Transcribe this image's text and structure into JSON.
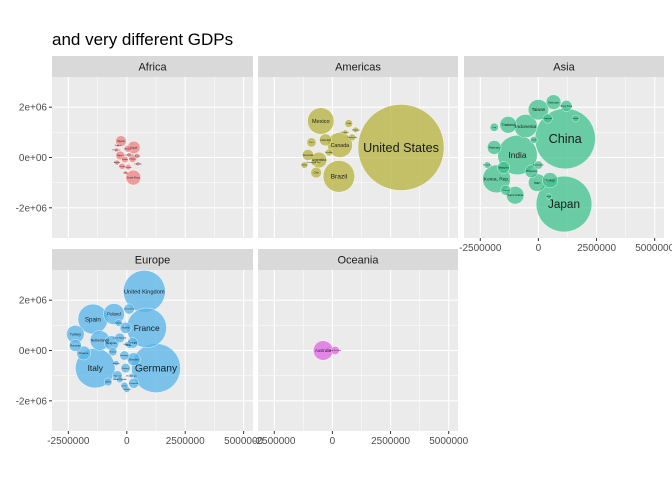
{
  "chart_data": {
    "type": "scatter",
    "subtype": "faceted packed bubble chart",
    "title": "and very different GDPs",
    "facet_labels": [
      "Africa",
      "Americas",
      "Asia",
      "Europe",
      "Oceania"
    ],
    "x_ticks": [
      -2500000,
      0,
      2500000,
      5000000
    ],
    "x_tick_labels": [
      "-2500000",
      "0",
      "2500000",
      "5000000"
    ],
    "y_ticks": [
      -2000000,
      0,
      2000000
    ],
    "y_tick_labels": [
      "-2e+06",
      "0e+00",
      "2e+06"
    ],
    "xlim": [
      -3200000,
      5400000
    ],
    "ylim": [
      -3200000,
      3200000
    ],
    "colors": {
      "Africa": "#F08080",
      "Americas": "#B5B13C",
      "Asia": "#3EC28E",
      "Europe": "#56B4E9",
      "Oceania": "#E066E6",
      "panel_bg": "#EBEBEB",
      "strip_bg": "#D9D9D9",
      "grid": "#FFFFFF"
    },
    "series": [
      {
        "name": "Africa",
        "points": [
          {
            "label": "Egypt",
            "x": 300000,
            "y": 400000,
            "r": 270000
          },
          {
            "label": "Nigeria",
            "x": -250000,
            "y": 650000,
            "r": 230000
          },
          {
            "label": "South Africa",
            "x": 280000,
            "y": -800000,
            "r": 320000
          },
          {
            "label": "Algeria",
            "x": -280000,
            "y": 80000,
            "r": 190000
          },
          {
            "label": "Morocco",
            "x": 50000,
            "y": 350000,
            "r": 150000
          },
          {
            "label": "Sudan",
            "x": -80000,
            "y": -80000,
            "r": 140000
          },
          {
            "label": "Ethiopia",
            "x": 250000,
            "y": -60000,
            "r": 150000
          },
          {
            "label": "Kenya",
            "x": -200000,
            "y": -350000,
            "r": 130000
          },
          {
            "label": "Tunisia",
            "x": 60000,
            "y": -380000,
            "r": 120000
          },
          {
            "label": "Ghana",
            "x": 440000,
            "y": 60000,
            "r": 110000
          },
          {
            "label": "Angola",
            "x": -420000,
            "y": -200000,
            "r": 110000
          },
          {
            "label": "Cameroon",
            "x": 100000,
            "y": 100000,
            "r": 100000
          },
          {
            "label": "Tanzania",
            "x": -450000,
            "y": 300000,
            "r": 90000
          },
          {
            "label": "Uganda",
            "x": 480000,
            "y": -250000,
            "r": 90000
          },
          {
            "label": "Libya",
            "x": -50000,
            "y": -600000,
            "r": 80000
          },
          {
            "label": "Zambia",
            "x": -380000,
            "y": 480000,
            "r": 70000
          }
        ]
      },
      {
        "name": "Americas",
        "points": [
          {
            "label": "United States",
            "x": 2950000,
            "y": 400000,
            "r": 1850000
          },
          {
            "label": "Mexico",
            "x": -500000,
            "y": 1450000,
            "r": 570000
          },
          {
            "label": "Brazil",
            "x": 280000,
            "y": -750000,
            "r": 680000
          },
          {
            "label": "Canada",
            "x": 320000,
            "y": 500000,
            "r": 540000
          },
          {
            "label": "Argentina",
            "x": -580000,
            "y": -100000,
            "r": 340000
          },
          {
            "label": "Colombia",
            "x": -300000,
            "y": 700000,
            "r": 260000
          },
          {
            "label": "Venezuela",
            "x": -1050000,
            "y": 100000,
            "r": 240000
          },
          {
            "label": "Chile",
            "x": -700000,
            "y": -600000,
            "r": 230000
          },
          {
            "label": "Peru",
            "x": -900000,
            "y": 600000,
            "r": 200000
          },
          {
            "label": "Cuba",
            "x": 700000,
            "y": 1350000,
            "r": 170000
          },
          {
            "label": "Ecuador",
            "x": -150000,
            "y": 200000,
            "r": 150000
          },
          {
            "label": "Guatemala",
            "x": 850000,
            "y": 800000,
            "r": 150000
          },
          {
            "label": "Bolivia",
            "x": -1200000,
            "y": -300000,
            "r": 140000
          },
          {
            "label": "Uruguay",
            "x": 1000000,
            "y": 1100000,
            "r": 120000
          },
          {
            "label": "Dominican Rep.",
            "x": -800000,
            "y": -200000,
            "r": 120000
          },
          {
            "label": "Panama",
            "x": 550000,
            "y": 1000000,
            "r": 110000
          }
        ]
      },
      {
        "name": "Asia",
        "points": [
          {
            "label": "China",
            "x": 1150000,
            "y": 750000,
            "r": 1300000
          },
          {
            "label": "Japan",
            "x": 1100000,
            "y": -1850000,
            "r": 1200000
          },
          {
            "label": "India",
            "x": -900000,
            "y": 100000,
            "r": 850000
          },
          {
            "label": "Korea, Rep.",
            "x": -1800000,
            "y": -850000,
            "r": 600000
          },
          {
            "label": "Indonesia",
            "x": -550000,
            "y": 1250000,
            "r": 500000
          },
          {
            "label": "Taiwan",
            "x": 0,
            "y": 1900000,
            "r": 440000
          },
          {
            "label": "Iran",
            "x": -50000,
            "y": -1000000,
            "r": 380000
          },
          {
            "label": "Saudi Arabia",
            "x": -1000000,
            "y": -1500000,
            "r": 380000
          },
          {
            "label": "Thailand",
            "x": -1300000,
            "y": 1300000,
            "r": 360000
          },
          {
            "label": "Turkey",
            "x": 500000,
            "y": -900000,
            "r": 330000
          },
          {
            "label": "Pakistan",
            "x": -1900000,
            "y": 400000,
            "r": 300000
          },
          {
            "label": "Philippines",
            "x": -300000,
            "y": -550000,
            "r": 280000
          },
          {
            "label": "Malaysia",
            "x": -1500000,
            "y": -400000,
            "r": 260000
          },
          {
            "label": "Vietnam",
            "x": 650000,
            "y": 2200000,
            "r": 320000
          },
          {
            "label": "Israel",
            "x": -1400000,
            "y": -1300000,
            "r": 220000
          },
          {
            "label": "Hong Kong",
            "x": 1200000,
            "y": 2050000,
            "r": 240000
          },
          {
            "label": "Singapore",
            "x": 400000,
            "y": 1550000,
            "r": 200000
          },
          {
            "label": "Iraq",
            "x": -1900000,
            "y": 1200000,
            "r": 180000
          },
          {
            "label": "Bangladesh",
            "x": 0,
            "y": -300000,
            "r": 180000
          },
          {
            "label": "Syria",
            "x": -200000,
            "y": 700000,
            "r": 150000
          },
          {
            "label": "Kuwait",
            "x": 1600000,
            "y": 1550000,
            "r": 150000
          },
          {
            "label": "Sri Lanka",
            "x": -2200000,
            "y": -300000,
            "r": 140000
          },
          {
            "label": "Nepal",
            "x": 450000,
            "y": -1550000,
            "r": 120000
          }
        ]
      },
      {
        "name": "Europe",
        "points": [
          {
            "label": "Germany",
            "x": 1250000,
            "y": -700000,
            "r": 1050000
          },
          {
            "label": "United Kingdom",
            "x": 750000,
            "y": 2350000,
            "r": 900000
          },
          {
            "label": "France",
            "x": 850000,
            "y": 900000,
            "r": 850000
          },
          {
            "label": "Italy",
            "x": -1350000,
            "y": -700000,
            "r": 850000
          },
          {
            "label": "Spain",
            "x": -1450000,
            "y": 1250000,
            "r": 640000
          },
          {
            "label": "Netherlands",
            "x": -1150000,
            "y": 400000,
            "r": 420000
          },
          {
            "label": "Poland",
            "x": -550000,
            "y": 1450000,
            "r": 450000
          },
          {
            "label": "Turkey",
            "x": -2200000,
            "y": 650000,
            "r": 380000
          },
          {
            "label": "Belgium",
            "x": -650000,
            "y": 300000,
            "r": 310000
          },
          {
            "label": "Sweden",
            "x": 300000,
            "y": -350000,
            "r": 280000
          },
          {
            "label": "Austria",
            "x": -50000,
            "y": 900000,
            "r": 240000
          },
          {
            "label": "Switzerland",
            "x": 100000,
            "y": 1650000,
            "r": 220000
          },
          {
            "label": "Romania",
            "x": -2200000,
            "y": 200000,
            "r": 260000
          },
          {
            "label": "Greece",
            "x": -1850000,
            "y": -100000,
            "r": 300000
          },
          {
            "label": "Portugal",
            "x": 250000,
            "y": 300000,
            "r": 230000
          },
          {
            "label": "Czech Republic",
            "x": -300000,
            "y": 500000,
            "r": 210000
          },
          {
            "label": "Hungary",
            "x": -100000,
            "y": -200000,
            "r": 200000
          },
          {
            "label": "Denmark",
            "x": 300000,
            "y": -1300000,
            "r": 220000
          },
          {
            "label": "Finland",
            "x": -50000,
            "y": -700000,
            "r": 200000
          },
          {
            "label": "Norway",
            "x": -400000,
            "y": -1000000,
            "r": 210000
          },
          {
            "label": "Ireland",
            "x": -600000,
            "y": -50000,
            "r": 180000
          },
          {
            "label": "Serbia",
            "x": -800000,
            "y": -1250000,
            "r": 170000
          },
          {
            "label": "Croatia",
            "x": -100000,
            "y": -1400000,
            "r": 150000
          },
          {
            "label": "Slovak Republic",
            "x": -300000,
            "y": -1150000,
            "r": 140000
          },
          {
            "label": "Bulgaria",
            "x": -350000,
            "y": 1100000,
            "r": 150000
          },
          {
            "label": "Slovenia",
            "x": 0,
            "y": -1550000,
            "r": 130000
          },
          {
            "label": "Bosnia",
            "x": 100000,
            "y": 200000,
            "r": 120000
          },
          {
            "label": "Albania",
            "x": -450000,
            "y": -500000,
            "r": 110000
          },
          {
            "label": "Iceland",
            "x": 0,
            "y": 250000,
            "r": 100000
          },
          {
            "label": "Montenegro",
            "x": 200000,
            "y": -1000000,
            "r": 90000
          }
        ]
      },
      {
        "name": "Oceania",
        "points": [
          {
            "label": "Australia",
            "x": -400000,
            "y": 0,
            "r": 420000
          },
          {
            "label": "New Zealand",
            "x": 120000,
            "y": 0,
            "r": 180000
          }
        ]
      }
    ]
  }
}
